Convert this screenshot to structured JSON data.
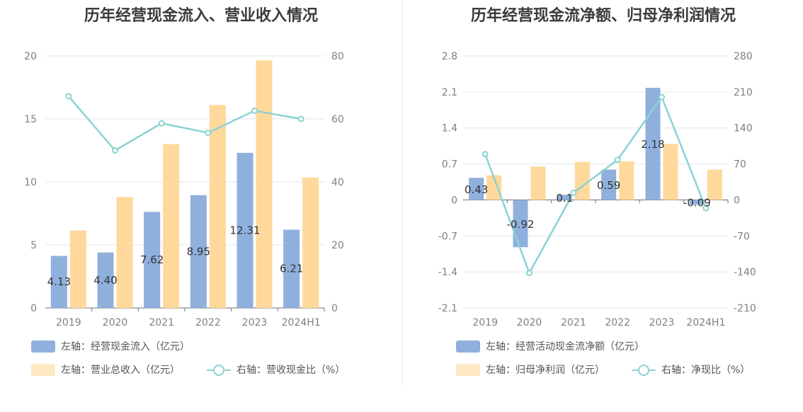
{
  "colors": {
    "bar1": "#8fb0dd",
    "bar2": "#ffd99b",
    "line": "#8ad3d3",
    "grid": "#e4e6ef"
  },
  "chart_data": [
    {
      "type": "bar",
      "title": "历年经营现金流入、营业收入情况",
      "categories": [
        "2019",
        "2020",
        "2021",
        "2022",
        "2023",
        "2024H1"
      ],
      "series": [
        {
          "name": "左轴：经营现金流入（亿元）",
          "axis": "left",
          "kind": "bar",
          "values": [
            4.13,
            4.4,
            7.62,
            8.95,
            12.31,
            6.21
          ],
          "labels": [
            "4.13",
            "4.40",
            "7.62",
            "8.95",
            "12.31",
            "6.21"
          ]
        },
        {
          "name": "左轴：营业总收入（亿元）",
          "axis": "left",
          "kind": "bar",
          "values": [
            6.15,
            8.8,
            13.0,
            16.1,
            19.65,
            10.35
          ]
        },
        {
          "name": "右轴：营收现金比（%）",
          "axis": "right",
          "kind": "line",
          "values": [
            67.2,
            50.0,
            58.6,
            55.6,
            62.6,
            60.0
          ]
        }
      ],
      "left_axis": {
        "ticks": [
          "0",
          "5",
          "10",
          "15",
          "20"
        ],
        "min": 0,
        "max": 20
      },
      "right_axis": {
        "ticks": [
          "0",
          "20",
          "40",
          "60",
          "80"
        ],
        "min": 0,
        "max": 80
      },
      "legend": [
        "左轴：经营现金流入（亿元）",
        "左轴：营业总收入（亿元）",
        "右轴：营收现金比（%）"
      ]
    },
    {
      "type": "bar",
      "title": "历年经营现金流净额、归母净利润情况",
      "categories": [
        "2019",
        "2020",
        "2021",
        "2022",
        "2023",
        "2024H1"
      ],
      "series": [
        {
          "name": "左轴：经营活动现金流净额（亿元）",
          "axis": "left",
          "kind": "bar",
          "values": [
            0.43,
            -0.92,
            0.1,
            0.59,
            2.18,
            -0.09
          ],
          "labels": [
            "0.43",
            "-0.92",
            "0.1",
            "0.59",
            "2.18",
            "-0.09"
          ]
        },
        {
          "name": "左轴：归母净利润（亿元）",
          "axis": "left",
          "kind": "bar",
          "values": [
            0.48,
            0.65,
            0.74,
            0.75,
            1.09,
            0.59
          ]
        },
        {
          "name": "右轴：净现比（%）",
          "axis": "right",
          "kind": "line",
          "values": [
            89,
            -142,
            14,
            78,
            200,
            -16
          ]
        }
      ],
      "left_axis": {
        "ticks": [
          "-2.1",
          "-1.4",
          "-0.7",
          "0",
          "0.7",
          "1.4",
          "2.1",
          "2.8"
        ],
        "min": -2.1,
        "max": 2.8
      },
      "right_axis": {
        "ticks": [
          "-210",
          "-140",
          "-70",
          "0",
          "70",
          "140",
          "210",
          "280"
        ],
        "min": -210,
        "max": 280
      },
      "legend": [
        "左轴：经营活动现金流净额（亿元）",
        "左轴：归母净利润（亿元）",
        "右轴：净现比（%）"
      ]
    }
  ]
}
